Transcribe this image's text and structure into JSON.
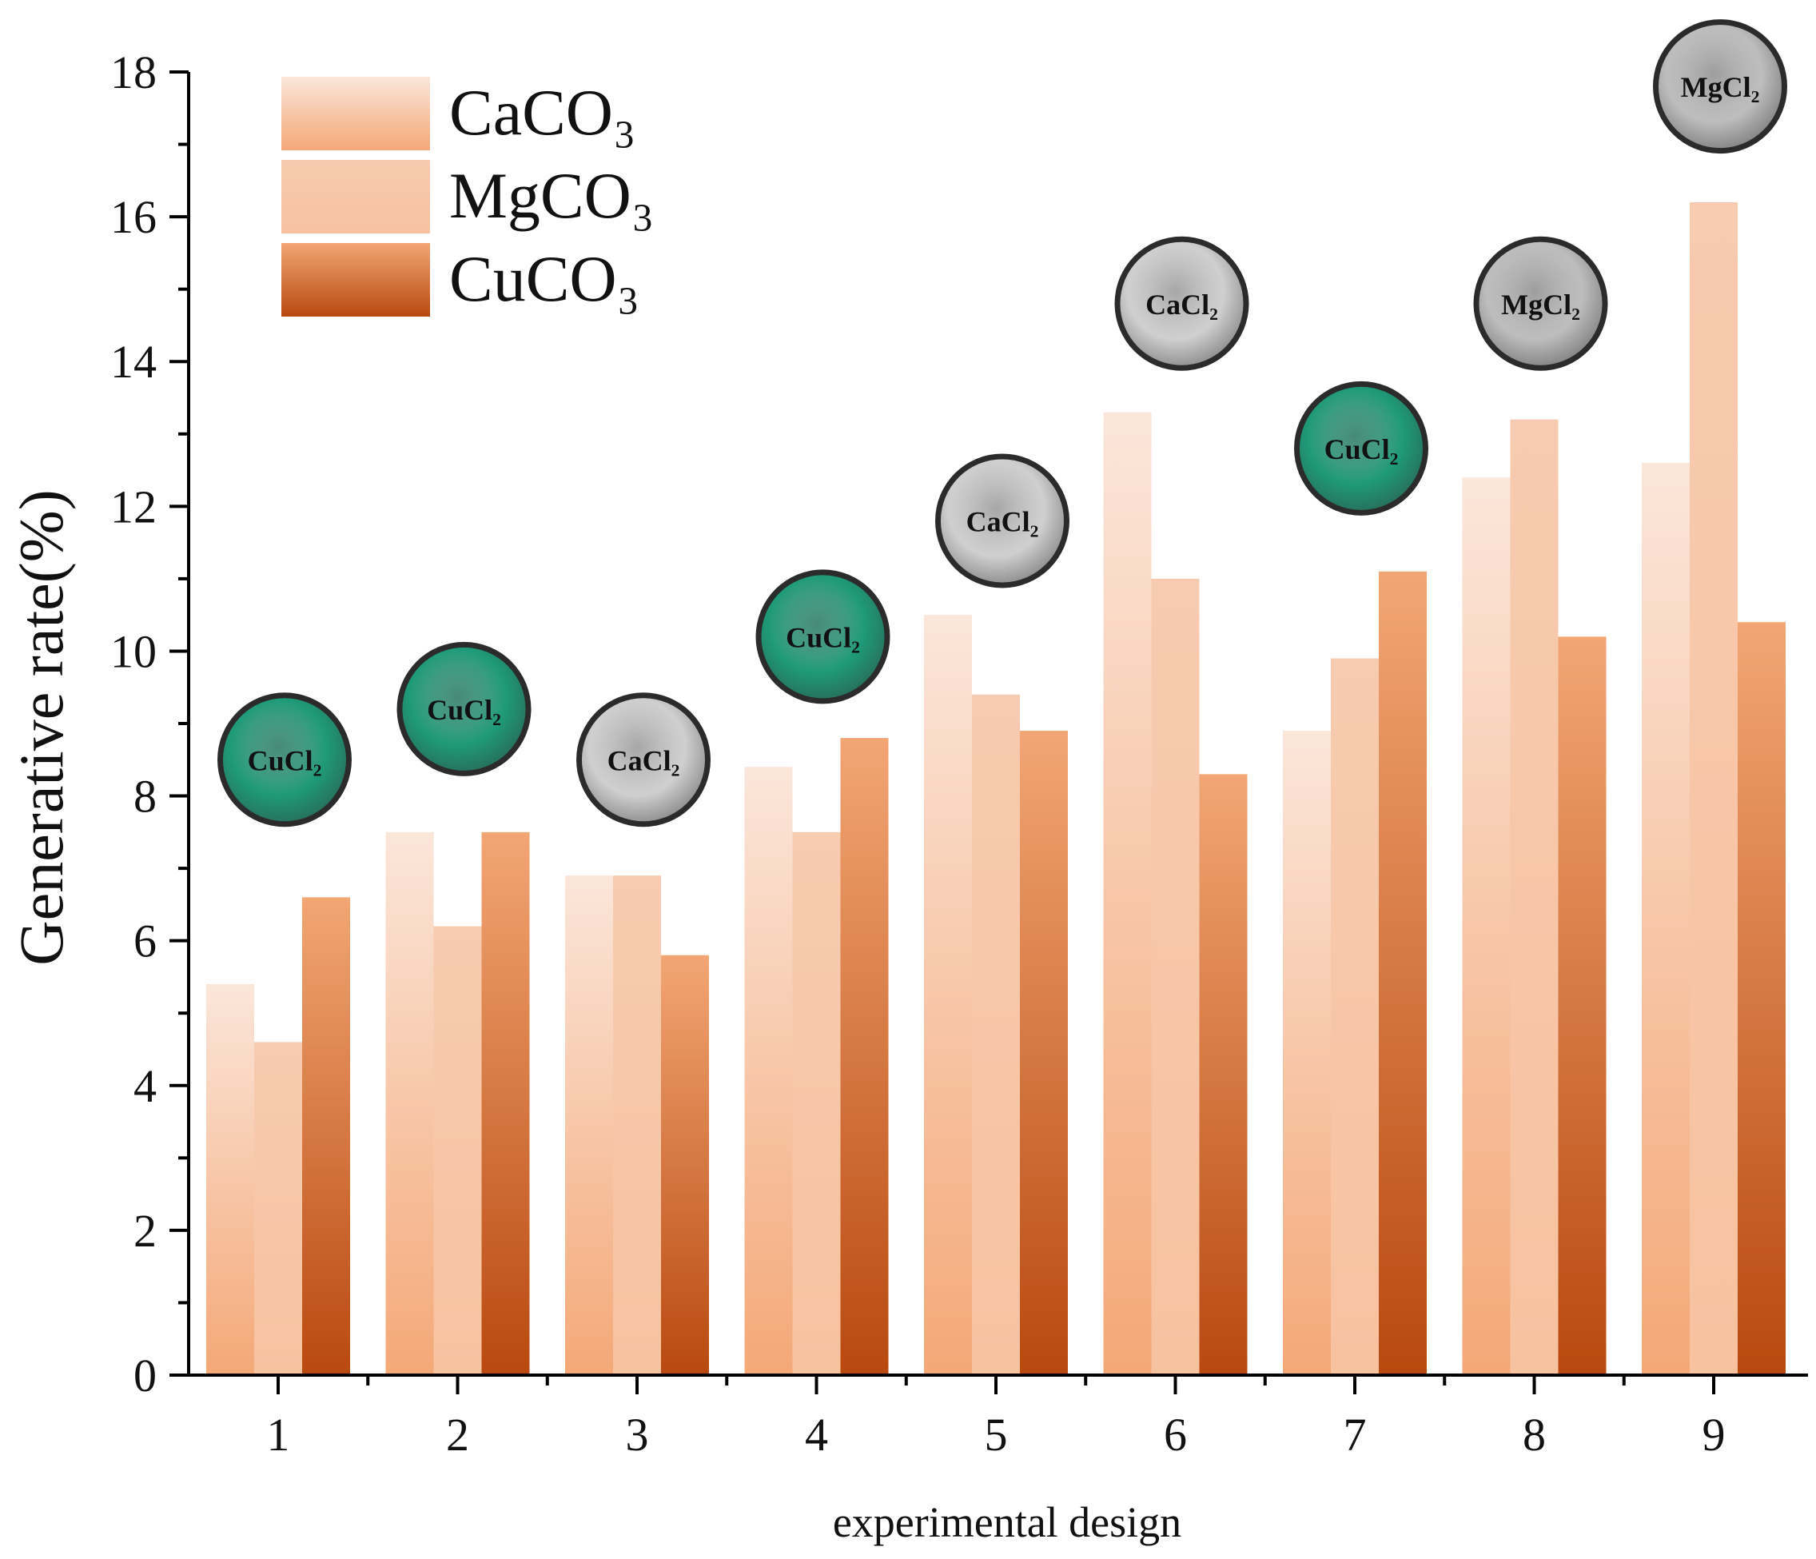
{
  "chart_data": {
    "type": "bar",
    "xlabel": "experimental design",
    "ylabel": "Generative rate(%)",
    "ylim": [
      0,
      18
    ],
    "y_ticks": [
      "0",
      "2",
      "4",
      "6",
      "8",
      "10",
      "12",
      "14",
      "16",
      "18"
    ],
    "categories": [
      "1",
      "2",
      "3",
      "4",
      "5",
      "6",
      "7",
      "8",
      "9"
    ],
    "series": [
      {
        "name": "CaCO₃",
        "values": [
          5.4,
          7.5,
          6.9,
          8.4,
          10.5,
          13.3,
          8.9,
          12.4,
          12.6
        ]
      },
      {
        "name": "MgCO₃",
        "values": [
          4.6,
          6.2,
          6.9,
          7.5,
          9.4,
          11.0,
          9.9,
          13.2,
          16.2
        ]
      },
      {
        "name": "CuCO₃",
        "values": [
          6.6,
          7.5,
          5.8,
          8.8,
          8.9,
          8.3,
          11.1,
          10.2,
          10.4
        ]
      }
    ],
    "legend_position": "top-left",
    "series_colors": [
      [
        "#fbe6da",
        "#f4a877"
      ],
      [
        "#f7cbb0",
        "#f7c2a0"
      ],
      [
        "#f2a674",
        "#b8490f"
      ]
    ],
    "annotations": [
      {
        "category": "1",
        "label": "CuCl₂",
        "color": "#1f9a78",
        "at_value": 8.5
      },
      {
        "category": "2",
        "label": "CuCl₂",
        "color": "#1f9a78",
        "at_value": 9.2
      },
      {
        "category": "3",
        "label": "CaCl₂",
        "color": "#cfcfcf",
        "at_value": 8.5
      },
      {
        "category": "4",
        "label": "CuCl₂",
        "color": "#1f9a78",
        "at_value": 10.2
      },
      {
        "category": "5",
        "label": "CaCl₂",
        "color": "#cfcfcf",
        "at_value": 11.8
      },
      {
        "category": "6",
        "label": "CaCl₂",
        "color": "#cfcfcf",
        "at_value": 14.8
      },
      {
        "category": "7",
        "label": "CuCl₂",
        "color": "#1f9a78",
        "at_value": 12.8
      },
      {
        "category": "8",
        "label": "MgCl₂",
        "color": "#bdbdbd",
        "at_value": 14.8
      },
      {
        "category": "9",
        "label": "MgCl₂",
        "color": "#bdbdbd",
        "at_value": 17.8
      }
    ]
  }
}
